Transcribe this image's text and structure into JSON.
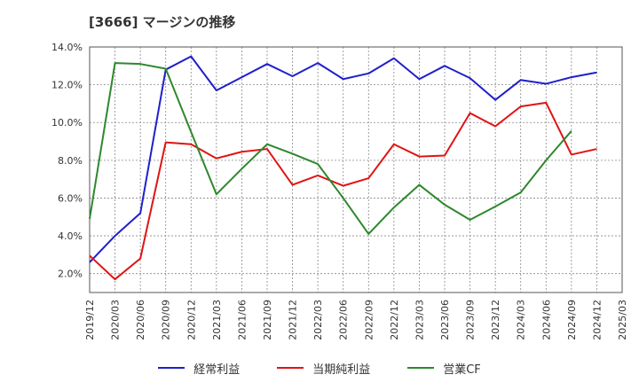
{
  "chart_data": {
    "type": "line",
    "title": "[3666]  マージンの推移",
    "xlabel": "",
    "ylabel": "",
    "ylim": [
      1.0,
      14.0
    ],
    "yticks": [
      2.0,
      4.0,
      6.0,
      8.0,
      10.0,
      12.0,
      14.0
    ],
    "ytick_labels": [
      "2.0%",
      "4.0%",
      "6.0%",
      "8.0%",
      "10.0%",
      "12.0%",
      "14.0%"
    ],
    "grid": true,
    "legend_position": "bottom",
    "categories": [
      "2019/12",
      "2020/03",
      "2020/06",
      "2020/09",
      "2020/12",
      "2021/03",
      "2021/06",
      "2021/09",
      "2021/12",
      "2022/03",
      "2022/06",
      "2022/09",
      "2022/12",
      "2023/03",
      "2023/06",
      "2023/09",
      "2023/12",
      "2024/03",
      "2024/06",
      "2024/09",
      "2024/12",
      "2025/03"
    ],
    "series": [
      {
        "name": "経常利益",
        "color": "#1f1fcc",
        "values": [
          2.6,
          4.0,
          5.2,
          12.8,
          13.5,
          11.7,
          12.4,
          13.1,
          12.45,
          13.15,
          12.3,
          12.6,
          13.4,
          12.3,
          13.0,
          12.35,
          11.2,
          12.25,
          12.05,
          12.4,
          12.65,
          null
        ]
      },
      {
        "name": "当期純利益",
        "color": "#e01414",
        "values": [
          2.95,
          1.7,
          2.8,
          8.95,
          8.85,
          8.1,
          8.45,
          8.6,
          6.7,
          7.2,
          6.65,
          7.05,
          8.85,
          8.2,
          8.25,
          10.5,
          9.8,
          10.85,
          11.05,
          8.3,
          8.6,
          null
        ]
      },
      {
        "name": "営業CF",
        "color": "#2d882d",
        "values": [
          4.9,
          13.15,
          13.1,
          12.85,
          9.5,
          6.2,
          7.55,
          8.85,
          8.35,
          7.8,
          6.0,
          4.1,
          5.5,
          6.7,
          5.65,
          4.85,
          5.55,
          6.3,
          8.0,
          9.55,
          null,
          null
        ]
      }
    ]
  }
}
